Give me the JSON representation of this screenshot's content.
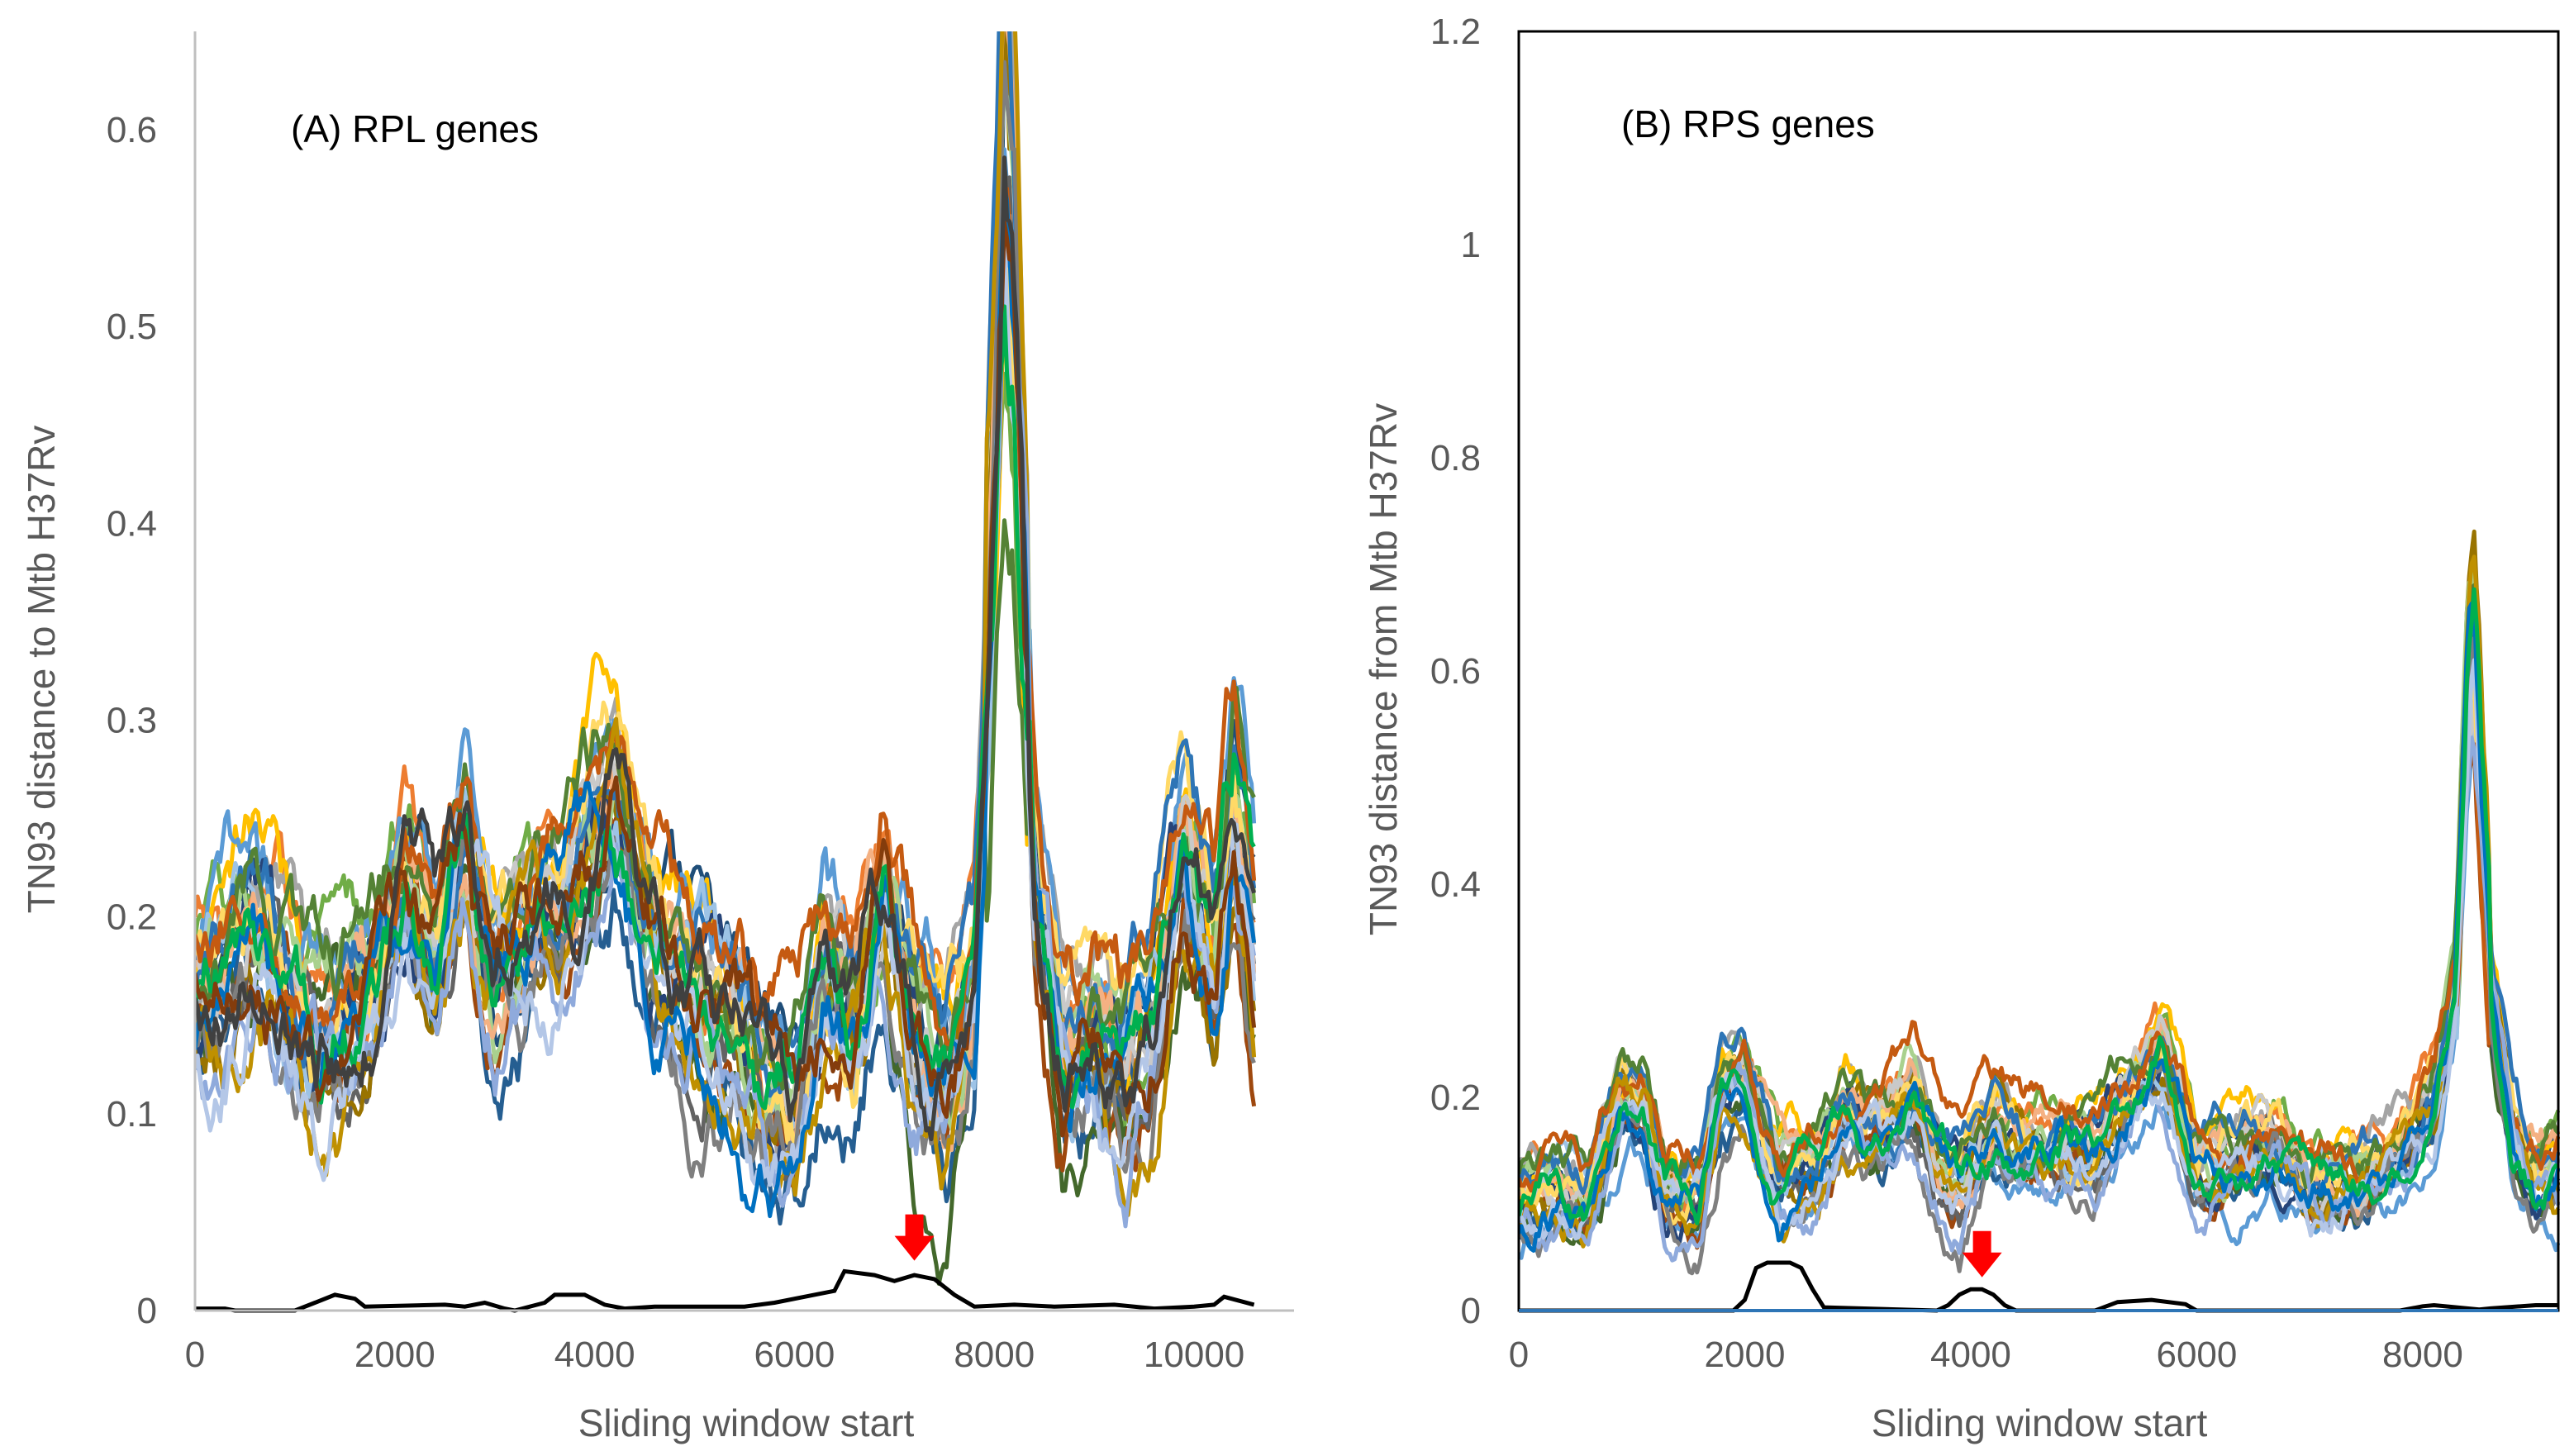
{
  "chart_data": [
    {
      "type": "line",
      "panel_label": "(A) RPL genes",
      "xlabel": "Sliding window start",
      "ylabel": "TN93 distance to Mtb H37Rv",
      "xlim": [
        0,
        11000
      ],
      "ylim": [
        0,
        0.65
      ],
      "x_ticks": [
        "0",
        "2000",
        "4000",
        "6000",
        "8000",
        "10000"
      ],
      "x_tick_values": [
        0,
        2000,
        4000,
        6000,
        8000,
        10000
      ],
      "y_ticks": [
        "0",
        "0.1",
        "0.2",
        "0.3",
        "0.4",
        "0.5",
        "0.6"
      ],
      "y_tick_values": [
        0,
        0.1,
        0.2,
        0.3,
        0.4,
        0.5,
        0.6
      ],
      "x_end": 10600,
      "profile": {
        "x": [
          0,
          300,
          600,
          900,
          1200,
          1500,
          1800,
          2100,
          2400,
          2700,
          3000,
          3300,
          3600,
          3900,
          4200,
          4500,
          4800,
          5100,
          5400,
          5700,
          6000,
          6300,
          6600,
          6900,
          7200,
          7500,
          7800,
          8000,
          8100,
          8200,
          8400,
          8700,
          9000,
          9300,
          9600,
          9900,
          10200,
          10400,
          10600
        ],
        "y": [
          0.16,
          0.17,
          0.19,
          0.17,
          0.14,
          0.15,
          0.17,
          0.22,
          0.18,
          0.24,
          0.18,
          0.19,
          0.21,
          0.24,
          0.27,
          0.2,
          0.17,
          0.16,
          0.15,
          0.11,
          0.1,
          0.17,
          0.15,
          0.21,
          0.14,
          0.12,
          0.16,
          0.4,
          0.56,
          0.5,
          0.22,
          0.12,
          0.14,
          0.12,
          0.16,
          0.24,
          0.18,
          0.26,
          0.19
        ]
      },
      "threshold_line": {
        "x": [
          0,
          300,
          400,
          1000,
          1200,
          1400,
          1600,
          1700,
          2500,
          2700,
          2900,
          3100,
          3200,
          3500,
          3600,
          3900,
          4100,
          4300,
          4600,
          5500,
          5800,
          6200,
          6400,
          6500,
          6800,
          7000,
          7200,
          7400,
          7600,
          7800,
          8200,
          8600,
          9200,
          9600,
          10000,
          10200,
          10300,
          10600
        ],
        "y": [
          0.001,
          0.001,
          0.0,
          0.0,
          0.004,
          0.008,
          0.006,
          0.002,
          0.003,
          0.002,
          0.004,
          0.001,
          0.0,
          0.004,
          0.008,
          0.008,
          0.003,
          0.001,
          0.002,
          0.002,
          0.004,
          0.008,
          0.01,
          0.02,
          0.018,
          0.015,
          0.018,
          0.016,
          0.008,
          0.002,
          0.003,
          0.002,
          0.003,
          0.001,
          0.002,
          0.003,
          0.007,
          0.003
        ]
      },
      "annotation": {
        "type": "red-arrow",
        "x": 7200,
        "y": 0.022
      },
      "series_colors": [
        "#1F4E79",
        "#70AD47",
        "#ED7D31",
        "#A5A5A5",
        "#FFC000",
        "#5B9BD5",
        "#255E91",
        "#43682B",
        "#9E480E",
        "#636363",
        "#997300",
        "#264478",
        "#9DC3E6",
        "#A9D18E",
        "#F4B183",
        "#C9C9C9",
        "#FFD966",
        "#2E75B6",
        "#548235",
        "#C55A11",
        "#7F7F7F",
        "#BF9000",
        "#8FAADC",
        "#B4C7E7",
        "#0070C0",
        "#00B050",
        "#843C0C",
        "#404040"
      ],
      "series_count": 28,
      "noise_amplitude": 0.045
    },
    {
      "type": "line",
      "panel_label": "(B) RPS genes",
      "xlabel": "Sliding window start",
      "ylabel": "TN93 distance from Mtb H37Rv",
      "xlim": [
        0,
        9200
      ],
      "ylim": [
        0,
        1.2
      ],
      "x_ticks": [
        "0",
        "2000",
        "4000",
        "6000",
        "8000"
      ],
      "x_tick_values": [
        0,
        2000,
        4000,
        6000,
        8000
      ],
      "y_ticks": [
        "0",
        "0.2",
        "0.4",
        "0.6",
        "0.8",
        "1",
        "1.2"
      ],
      "y_tick_values": [
        0,
        0.2,
        0.4,
        0.6,
        0.8,
        1.0,
        1.2
      ],
      "x_end": 9200,
      "profile": {
        "x": [
          0,
          200,
          600,
          900,
          1100,
          1300,
          1600,
          1800,
          2000,
          2300,
          2600,
          2900,
          3200,
          3500,
          3700,
          3900,
          4200,
          4500,
          4800,
          5100,
          5400,
          5700,
          6000,
          6400,
          6700,
          7000,
          7400,
          7800,
          8100,
          8300,
          8400,
          8450,
          8600,
          8800,
          9000,
          9200
        ],
        "y": [
          0.1,
          0.11,
          0.1,
          0.2,
          0.2,
          0.11,
          0.11,
          0.21,
          0.22,
          0.12,
          0.13,
          0.18,
          0.16,
          0.2,
          0.14,
          0.11,
          0.17,
          0.15,
          0.16,
          0.15,
          0.2,
          0.24,
          0.13,
          0.14,
          0.15,
          0.11,
          0.12,
          0.15,
          0.2,
          0.3,
          0.55,
          0.6,
          0.3,
          0.16,
          0.12,
          0.13
        ]
      },
      "threshold_line": {
        "x": [
          0,
          1900,
          2000,
          2100,
          2200,
          2400,
          2500,
          2600,
          2700,
          3700,
          3800,
          3900,
          4000,
          4100,
          4200,
          4300,
          4400,
          5100,
          5300,
          5600,
          5900,
          6000,
          7800,
          8000,
          8100,
          8300,
          8500,
          8600,
          9000,
          9200
        ],
        "y": [
          0.0,
          0.0,
          0.01,
          0.04,
          0.045,
          0.045,
          0.04,
          0.02,
          0.003,
          0.0,
          0.005,
          0.015,
          0.02,
          0.02,
          0.015,
          0.005,
          0.0,
          0.0,
          0.008,
          0.01,
          0.006,
          0.0,
          0.0,
          0.004,
          0.005,
          0.003,
          0.001,
          0.002,
          0.005,
          0.005
        ]
      },
      "annotation": {
        "type": "red-arrow",
        "x": 4100,
        "y": 0.025
      },
      "series_colors": [
        "#1F4E79",
        "#70AD47",
        "#ED7D31",
        "#A5A5A5",
        "#FFC000",
        "#5B9BD5",
        "#255E91",
        "#43682B",
        "#9E480E",
        "#636363",
        "#997300",
        "#264478",
        "#9DC3E6",
        "#A9D18E",
        "#F4B183",
        "#C9C9C9",
        "#FFD966",
        "#2E75B6",
        "#548235",
        "#C55A11",
        "#7F7F7F",
        "#BF9000",
        "#8FAADC",
        "#B4C7E7",
        "#0070C0",
        "#00B050"
      ],
      "series_count": 26,
      "noise_amplitude": 0.04
    }
  ]
}
